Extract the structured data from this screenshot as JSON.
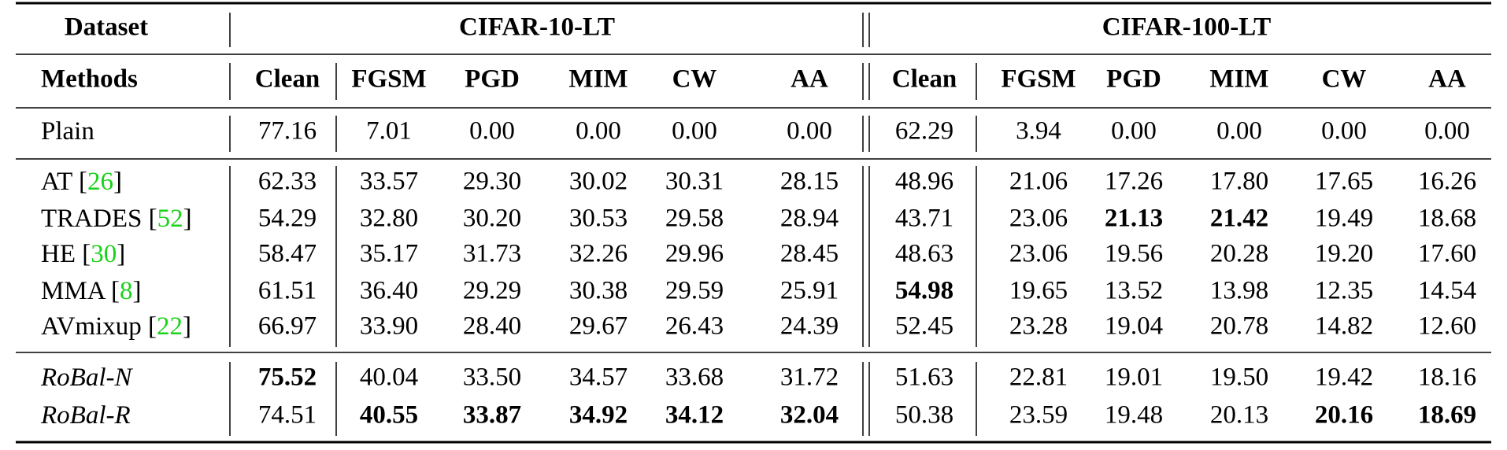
{
  "header": {
    "dataset_label": "Dataset",
    "groups": [
      "CIFAR-10-LT",
      "CIFAR-100-LT"
    ],
    "methods_label": "Methods",
    "columns": [
      "Clean",
      "FGSM",
      "PGD",
      "MIM",
      "CW",
      "AA",
      "Clean",
      "FGSM",
      "PGD",
      "MIM",
      "CW",
      "AA"
    ]
  },
  "sections": [
    [
      {
        "method": [
          {
            "text": "Plain"
          }
        ],
        "values": [
          "77.16",
          "7.01",
          "0.00",
          "0.00",
          "0.00",
          "0.00",
          "62.29",
          "3.94",
          "0.00",
          "0.00",
          "0.00",
          "0.00"
        ],
        "bold": []
      }
    ],
    [
      {
        "method": [
          {
            "text": "AT ["
          },
          {
            "text": "26",
            "cite": true
          },
          {
            "text": "]"
          }
        ],
        "values": [
          "62.33",
          "33.57",
          "29.30",
          "30.02",
          "30.31",
          "28.15",
          "48.96",
          "21.06",
          "17.26",
          "17.80",
          "17.65",
          "16.26"
        ],
        "bold": []
      },
      {
        "method": [
          {
            "text": "TRADES ["
          },
          {
            "text": "52",
            "cite": true
          },
          {
            "text": "]"
          }
        ],
        "values": [
          "54.29",
          "32.80",
          "30.20",
          "30.53",
          "29.58",
          "28.94",
          "43.71",
          "23.06",
          "21.13",
          "21.42",
          "19.49",
          "18.68"
        ],
        "bold": [
          8,
          9
        ]
      },
      {
        "method": [
          {
            "text": "HE ["
          },
          {
            "text": "30",
            "cite": true
          },
          {
            "text": "]"
          }
        ],
        "values": [
          "58.47",
          "35.17",
          "31.73",
          "32.26",
          "29.96",
          "28.45",
          "48.63",
          "23.06",
          "19.56",
          "20.28",
          "19.20",
          "17.60"
        ],
        "bold": []
      },
      {
        "method": [
          {
            "text": "MMA ["
          },
          {
            "text": "8",
            "cite": true
          },
          {
            "text": "]"
          }
        ],
        "values": [
          "61.51",
          "36.40",
          "29.29",
          "30.38",
          "29.59",
          "25.91",
          "54.98",
          "19.65",
          "13.52",
          "13.98",
          "12.35",
          "14.54"
        ],
        "bold": [
          6
        ]
      },
      {
        "method": [
          {
            "text": "AVmixup ["
          },
          {
            "text": "22",
            "cite": true
          },
          {
            "text": "]"
          }
        ],
        "values": [
          "66.97",
          "33.90",
          "28.40",
          "29.67",
          "26.43",
          "24.39",
          "52.45",
          "23.28",
          "19.04",
          "20.78",
          "14.82",
          "12.60"
        ],
        "bold": []
      }
    ],
    [
      {
        "method": [
          {
            "text": "RoBal-N"
          }
        ],
        "italic": true,
        "values": [
          "75.52",
          "40.04",
          "33.50",
          "34.57",
          "33.68",
          "31.72",
          "51.63",
          "22.81",
          "19.01",
          "19.50",
          "19.42",
          "18.16"
        ],
        "bold": [
          0
        ]
      },
      {
        "method": [
          {
            "text": "RoBal-R"
          }
        ],
        "italic": true,
        "values": [
          "74.51",
          "40.55",
          "33.87",
          "34.92",
          "34.12",
          "32.04",
          "50.38",
          "23.59",
          "19.48",
          "20.13",
          "20.16",
          "18.69"
        ],
        "bold": [
          1,
          2,
          3,
          4,
          5,
          10,
          11
        ]
      }
    ]
  ]
}
